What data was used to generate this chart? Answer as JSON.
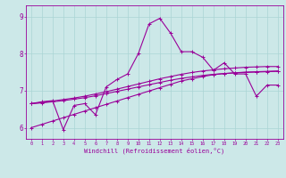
{
  "xlabel": "Windchill (Refroidissement éolien,°C)",
  "xlim": [
    -0.5,
    23.5
  ],
  "ylim": [
    5.7,
    9.3
  ],
  "yticks": [
    6,
    7,
    8,
    9
  ],
  "xticks": [
    0,
    1,
    2,
    3,
    4,
    5,
    6,
    7,
    8,
    9,
    10,
    11,
    12,
    13,
    14,
    15,
    16,
    17,
    18,
    19,
    20,
    21,
    22,
    23
  ],
  "bg_color": "#cce8e8",
  "grid_color": "#aad4d4",
  "line_color": "#990099",
  "border_color": "#990099",
  "series": {
    "jagged": [
      6.65,
      6.7,
      6.73,
      5.95,
      6.6,
      6.65,
      6.35,
      7.1,
      7.3,
      7.45,
      8.0,
      8.8,
      8.95,
      8.55,
      8.05,
      8.05,
      7.9,
      7.55,
      7.75,
      7.45,
      7.45,
      6.85,
      7.15,
      7.15
    ],
    "upper_trend": [
      6.65,
      6.68,
      6.72,
      6.76,
      6.8,
      6.85,
      6.91,
      6.97,
      7.04,
      7.11,
      7.18,
      7.25,
      7.32,
      7.38,
      7.44,
      7.49,
      7.53,
      7.56,
      7.59,
      7.61,
      7.63,
      7.64,
      7.65,
      7.65
    ],
    "mid_trend": [
      6.65,
      6.67,
      6.7,
      6.73,
      6.77,
      6.81,
      6.86,
      6.92,
      6.98,
      7.04,
      7.1,
      7.16,
      7.22,
      7.28,
      7.33,
      7.37,
      7.41,
      7.44,
      7.46,
      7.48,
      7.49,
      7.5,
      7.51,
      7.52
    ],
    "lower_trend": [
      6.0,
      6.09,
      6.18,
      6.27,
      6.36,
      6.45,
      6.54,
      6.63,
      6.72,
      6.81,
      6.9,
      6.99,
      7.08,
      7.17,
      7.26,
      7.32,
      7.38,
      7.43,
      7.46,
      7.48,
      7.5,
      7.51,
      7.52,
      7.53
    ]
  }
}
